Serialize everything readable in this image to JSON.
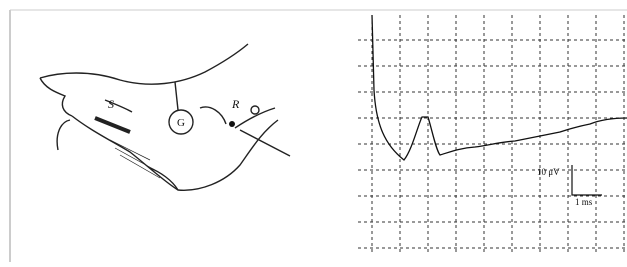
{
  "figure": {
    "foot_labels": {
      "stimulation": "S",
      "ground": "G",
      "recording": "R"
    },
    "scale_bar": {
      "amplitude": "10 μV",
      "time": "1 ms"
    }
  }
}
